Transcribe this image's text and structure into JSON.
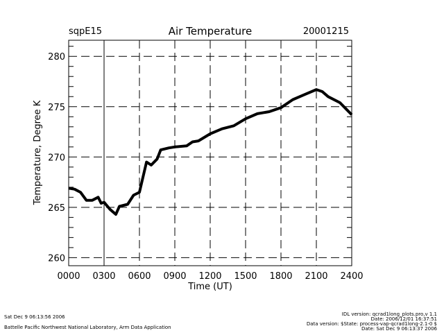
{
  "header": {
    "site": "sqpE15",
    "title": "Air Temperature",
    "date": "20001215"
  },
  "footer": {
    "timestamp": "Sat Dec  9 06:13:56 2006",
    "organization": "Battelle Pacific Northwest National Laboratory, Arm Data Application",
    "idl_version": "IDL version: qcrad1long_plots.pro,v 1.1",
    "idl_date": "Date: 2006/12/01 16:37:51",
    "data_version": "Data version: $State: process-vap-qcrad1long-2.1-0 $",
    "data_date": "Date: Sat Dec  9 06:13:37 2006"
  },
  "chart_data": {
    "type": "line",
    "title": "Air Temperature",
    "xlabel": "Time (UT)",
    "ylabel": "Temperature, Degree K",
    "xlim": [
      0,
      24
    ],
    "ylim": [
      259.2,
      281.6
    ],
    "x_ticks": [
      "0000",
      "0300",
      "0600",
      "0900",
      "1200",
      "1500",
      "1800",
      "2100",
      "2400"
    ],
    "y_ticks": [
      "260",
      "265",
      "270",
      "275",
      "280"
    ],
    "grid": true,
    "color": "#000000",
    "series": [
      {
        "x": [
          0,
          0.5,
          1,
          1.5,
          2,
          2.5,
          2.75,
          3,
          3.5,
          4,
          4.3,
          5,
          5.5,
          6,
          6.3,
          6.6,
          7,
          7.5,
          7.8,
          8.5,
          9,
          10,
          10.5,
          11,
          12,
          13,
          14,
          15,
          16,
          17,
          18,
          19,
          20,
          21,
          21.5,
          22,
          23,
          23.5,
          24
        ],
        "y": [
          266.9,
          266.8,
          266.5,
          265.7,
          265.7,
          266.0,
          265.4,
          265.5,
          264.8,
          264.3,
          265.1,
          265.3,
          266.2,
          266.5,
          268.0,
          269.5,
          269.2,
          269.8,
          270.7,
          270.9,
          271.0,
          271.1,
          271.5,
          271.6,
          272.3,
          272.8,
          273.1,
          273.8,
          274.3,
          274.5,
          274.9,
          275.7,
          276.2,
          276.7,
          276.5,
          276.0,
          275.4,
          274.8,
          274.2
        ]
      }
    ]
  }
}
